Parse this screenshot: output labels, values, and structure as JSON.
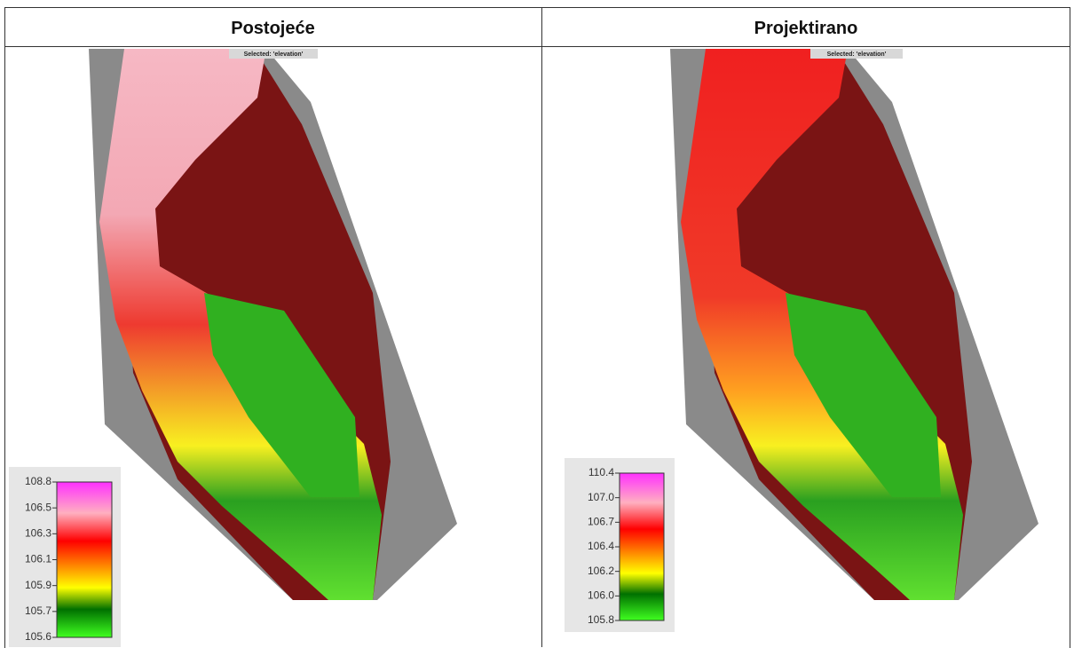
{
  "table": {
    "headers": [
      "Postojeće",
      "Projektirano"
    ]
  },
  "maps": [
    {
      "selection": "Selected: 'elevation'",
      "legend_ticks": [
        108.8,
        106.5,
        106.3,
        106.1,
        105.9,
        105.7,
        105.6
      ]
    },
    {
      "selection": "Selected: 'elevation'",
      "legend_ticks": [
        110.4,
        {
          "value": 107,
          "label": "107.0"
        },
        106.7,
        106.4,
        106.2,
        {
          "value": 106,
          "label": "106.0"
        },
        105.8
      ]
    }
  ]
}
